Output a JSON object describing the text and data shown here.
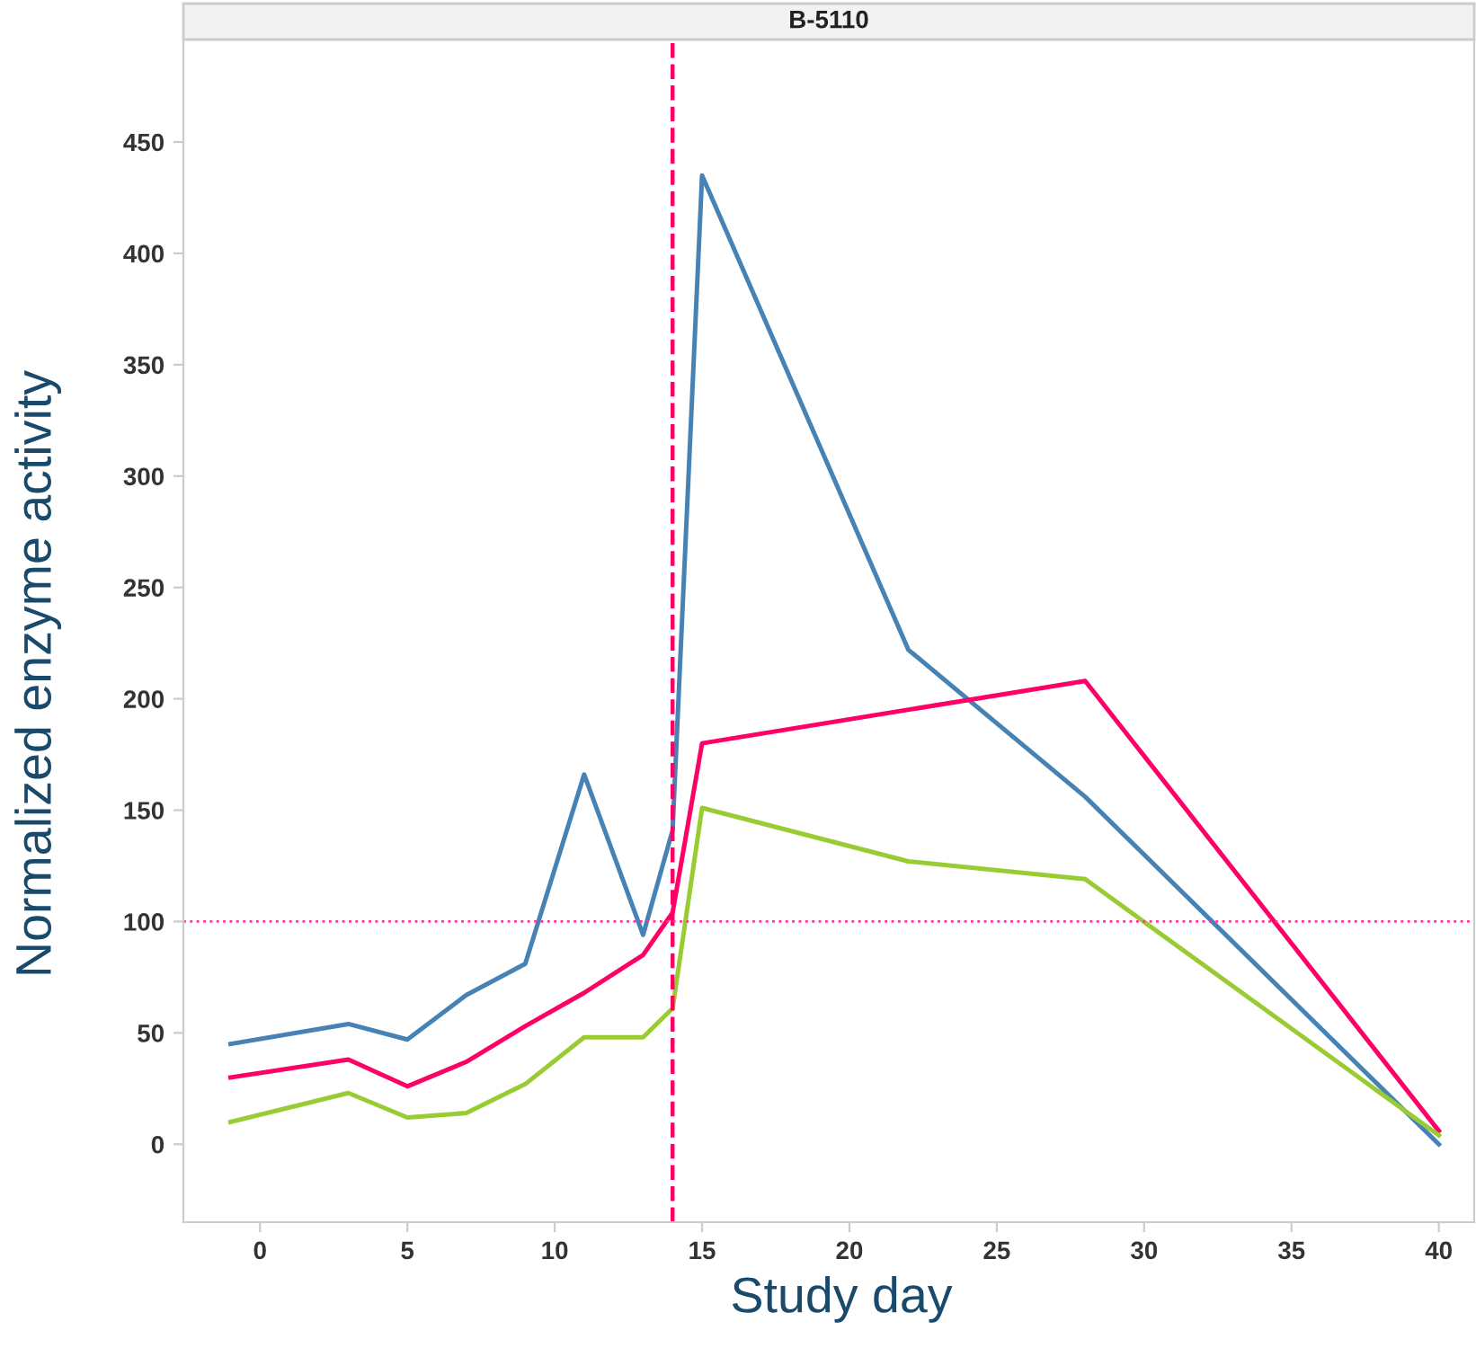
{
  "chart_data": {
    "type": "line",
    "title": "B-5110",
    "xlabel": "Study day",
    "ylabel": "Normalized enzyme activity",
    "xlim": [
      -2.6,
      41.2
    ],
    "xticks": [
      0,
      5,
      10,
      15,
      20,
      25,
      30,
      35,
      40
    ],
    "ylim": [
      -35,
      496
    ],
    "yticks": [
      0,
      50,
      100,
      150,
      200,
      250,
      300,
      350,
      400,
      450
    ],
    "grid": false,
    "marker": "none",
    "line_style": "solid",
    "series": [
      {
        "color": "#4682b4",
        "x": [
          -1,
          3,
          5,
          7,
          9,
          11,
          13,
          14,
          15,
          22,
          28,
          40
        ],
        "values": [
          45,
          54,
          47,
          67,
          81,
          166,
          94,
          141,
          435,
          222,
          156,
          0
        ]
      },
      {
        "color": "#ff0066",
        "x": [
          -1,
          3,
          5,
          7,
          9,
          11,
          13,
          14,
          15,
          28,
          40
        ],
        "values": [
          30,
          38,
          26,
          37,
          53,
          68,
          85,
          104,
          180,
          208,
          6
        ]
      },
      {
        "color": "#99cc33",
        "x": [
          -1,
          3,
          5,
          7,
          9,
          11,
          13,
          14,
          15,
          22,
          28,
          40
        ],
        "values": [
          10,
          23,
          12,
          14,
          27,
          48,
          48,
          61,
          151,
          127,
          119,
          4
        ]
      }
    ],
    "ref_lines": [
      {
        "axis": "x",
        "value": 14,
        "color": "#ff0066",
        "line_style": "dashed"
      },
      {
        "axis": "y",
        "value": 100,
        "color": "#ff3399",
        "line_style": "dotted"
      }
    ]
  }
}
